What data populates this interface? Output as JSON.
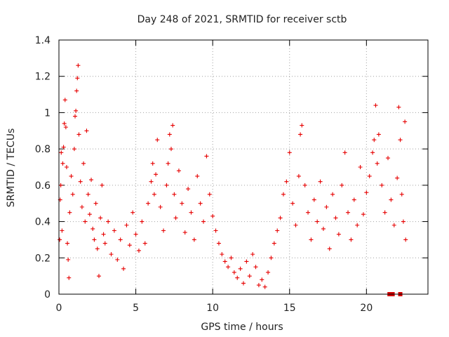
{
  "chart_data": {
    "type": "scatter",
    "title": "Day 248 of 2021, SRMTID for receiver sctb",
    "xlabel": "GPS time / hours",
    "ylabel": "SRMTID / TECUs",
    "xlim": [
      0,
      24
    ],
    "ylim": [
      0,
      1.4
    ],
    "x_ticks": [
      "0",
      "5",
      "10",
      "15",
      "20"
    ],
    "y_ticks": [
      "0",
      "0.2",
      "0.4",
      "0.6",
      "0.8",
      "1",
      "1.2",
      "1.4"
    ],
    "grid": true,
    "legend": "none",
    "marker_color": "#e60000",
    "series": [
      {
        "name": "SRMTID",
        "marker": "plus",
        "points": [
          [
            0.05,
            0.3
          ],
          [
            0.08,
            0.52
          ],
          [
            0.12,
            0.6
          ],
          [
            0.15,
            0.78
          ],
          [
            0.2,
            0.35
          ],
          [
            0.25,
            0.72
          ],
          [
            0.3,
            0.81
          ],
          [
            0.35,
            0.94
          ],
          [
            0.4,
            1.07
          ],
          [
            0.45,
            0.92
          ],
          [
            0.5,
            0.7
          ],
          [
            0.55,
            0.28
          ],
          [
            0.6,
            0.19
          ],
          [
            0.65,
            0.09
          ],
          [
            0.7,
            0.45
          ],
          [
            0.8,
            0.65
          ],
          [
            0.9,
            0.55
          ],
          [
            1.0,
            0.8
          ],
          [
            1.05,
            0.98
          ],
          [
            1.1,
            1.01
          ],
          [
            1.15,
            1.12
          ],
          [
            1.2,
            1.19
          ],
          [
            1.25,
            1.26
          ],
          [
            1.3,
            0.88
          ],
          [
            1.4,
            0.62
          ],
          [
            1.5,
            0.48
          ],
          [
            1.6,
            0.72
          ],
          [
            1.7,
            0.4
          ],
          [
            1.8,
            0.9
          ],
          [
            1.9,
            0.55
          ],
          [
            2.0,
            0.44
          ],
          [
            2.1,
            0.63
          ],
          [
            2.2,
            0.36
          ],
          [
            2.3,
            0.3
          ],
          [
            2.4,
            0.5
          ],
          [
            2.5,
            0.25
          ],
          [
            2.6,
            0.1
          ],
          [
            2.7,
            0.42
          ],
          [
            2.8,
            0.6
          ],
          [
            2.9,
            0.33
          ],
          [
            3.0,
            0.28
          ],
          [
            3.2,
            0.4
          ],
          [
            3.4,
            0.22
          ],
          [
            3.6,
            0.35
          ],
          [
            3.8,
            0.19
          ],
          [
            4.0,
            0.3
          ],
          [
            4.2,
            0.14
          ],
          [
            4.4,
            0.38
          ],
          [
            4.6,
            0.27
          ],
          [
            4.8,
            0.45
          ],
          [
            5.0,
            0.33
          ],
          [
            5.2,
            0.24
          ],
          [
            5.4,
            0.4
          ],
          [
            5.6,
            0.28
          ],
          [
            5.8,
            0.5
          ],
          [
            6.0,
            0.62
          ],
          [
            6.1,
            0.72
          ],
          [
            6.2,
            0.55
          ],
          [
            6.3,
            0.66
          ],
          [
            6.4,
            0.85
          ],
          [
            6.6,
            0.48
          ],
          [
            6.8,
            0.35
          ],
          [
            7.0,
            0.6
          ],
          [
            7.1,
            0.72
          ],
          [
            7.2,
            0.88
          ],
          [
            7.3,
            0.8
          ],
          [
            7.4,
            0.93
          ],
          [
            7.5,
            0.55
          ],
          [
            7.6,
            0.42
          ],
          [
            7.8,
            0.68
          ],
          [
            8.0,
            0.5
          ],
          [
            8.2,
            0.34
          ],
          [
            8.4,
            0.58
          ],
          [
            8.6,
            0.45
          ],
          [
            8.8,
            0.3
          ],
          [
            9.0,
            0.65
          ],
          [
            9.2,
            0.5
          ],
          [
            9.4,
            0.4
          ],
          [
            9.6,
            0.76
          ],
          [
            9.8,
            0.55
          ],
          [
            10.0,
            0.43
          ],
          [
            10.2,
            0.35
          ],
          [
            10.4,
            0.28
          ],
          [
            10.6,
            0.22
          ],
          [
            10.8,
            0.18
          ],
          [
            11.0,
            0.15
          ],
          [
            11.2,
            0.2
          ],
          [
            11.4,
            0.12
          ],
          [
            11.6,
            0.09
          ],
          [
            11.8,
            0.14
          ],
          [
            12.0,
            0.06
          ],
          [
            12.2,
            0.18
          ],
          [
            12.4,
            0.1
          ],
          [
            12.6,
            0.22
          ],
          [
            12.8,
            0.15
          ],
          [
            13.0,
            0.05
          ],
          [
            13.2,
            0.08
          ],
          [
            13.4,
            0.04
          ],
          [
            13.6,
            0.12
          ],
          [
            13.8,
            0.2
          ],
          [
            14.0,
            0.28
          ],
          [
            14.2,
            0.35
          ],
          [
            14.4,
            0.42
          ],
          [
            14.6,
            0.55
          ],
          [
            14.8,
            0.62
          ],
          [
            15.0,
            0.78
          ],
          [
            15.2,
            0.5
          ],
          [
            15.4,
            0.38
          ],
          [
            15.6,
            0.65
          ],
          [
            15.7,
            0.88
          ],
          [
            15.8,
            0.93
          ],
          [
            16.0,
            0.6
          ],
          [
            16.2,
            0.45
          ],
          [
            16.4,
            0.3
          ],
          [
            16.6,
            0.52
          ],
          [
            16.8,
            0.4
          ],
          [
            17.0,
            0.62
          ],
          [
            17.2,
            0.36
          ],
          [
            17.4,
            0.48
          ],
          [
            17.6,
            0.25
          ],
          [
            17.8,
            0.55
          ],
          [
            18.0,
            0.42
          ],
          [
            18.2,
            0.33
          ],
          [
            18.4,
            0.6
          ],
          [
            18.6,
            0.78
          ],
          [
            18.8,
            0.45
          ],
          [
            19.0,
            0.3
          ],
          [
            19.2,
            0.52
          ],
          [
            19.4,
            0.38
          ],
          [
            19.6,
            0.7
          ],
          [
            19.8,
            0.44
          ],
          [
            20.0,
            0.56
          ],
          [
            20.2,
            0.65
          ],
          [
            20.4,
            0.78
          ],
          [
            20.5,
            0.85
          ],
          [
            20.6,
            1.04
          ],
          [
            20.7,
            0.72
          ],
          [
            20.8,
            0.88
          ],
          [
            21.0,
            0.6
          ],
          [
            21.2,
            0.45
          ],
          [
            21.4,
            0.75
          ],
          [
            21.6,
            0.52
          ],
          [
            21.8,
            0.38
          ],
          [
            22.0,
            0.64
          ],
          [
            22.1,
            1.03
          ],
          [
            22.2,
            0.85
          ],
          [
            22.3,
            0.55
          ],
          [
            22.4,
            0.4
          ],
          [
            22.5,
            0.95
          ],
          [
            22.55,
            0.3
          ]
        ]
      }
    ],
    "bottom_markers": {
      "name": "axis markers",
      "marker": "square",
      "x": [
        21.5,
        21.6,
        21.7,
        22.2
      ]
    }
  }
}
